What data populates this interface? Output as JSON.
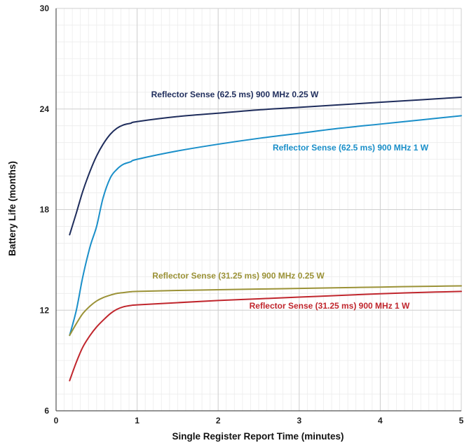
{
  "chart_data": {
    "type": "line",
    "xlabel": "Single Register Report Time (minutes)",
    "ylabel": "Battery Life (months)",
    "xlim": [
      0,
      5
    ],
    "ylim": [
      6,
      30
    ],
    "xticks": [
      0,
      1,
      2,
      3,
      4,
      5
    ],
    "yticks": [
      6,
      12,
      18,
      24,
      30
    ],
    "grid": true,
    "series": [
      {
        "name": "Reflector Sense (62.5 ms) 900 MHz 0.25 W",
        "color": "#1f2d5c",
        "x": [
          0.167,
          0.25,
          0.33,
          0.42,
          0.5,
          0.58,
          0.67,
          0.75,
          0.83,
          0.92,
          1.0,
          1.5,
          2.0,
          2.5,
          3.0,
          3.5,
          4.0,
          4.5,
          5.0
        ],
        "y": [
          16.5,
          17.8,
          19.1,
          20.3,
          21.2,
          21.9,
          22.5,
          22.85,
          23.05,
          23.15,
          23.25,
          23.55,
          23.75,
          23.95,
          24.1,
          24.25,
          24.4,
          24.55,
          24.7
        ]
      },
      {
        "name": "Reflector Sense (62.5 ms) 900 MHz 1 W",
        "color": "#1a8fc9",
        "x": [
          0.167,
          0.25,
          0.33,
          0.42,
          0.5,
          0.58,
          0.67,
          0.75,
          0.83,
          0.92,
          1.0,
          1.5,
          2.0,
          2.5,
          3.0,
          3.5,
          4.0,
          4.5,
          5.0
        ],
        "y": [
          10.5,
          12.0,
          14.0,
          15.8,
          17.0,
          18.7,
          19.9,
          20.4,
          20.7,
          20.85,
          21.0,
          21.5,
          21.9,
          22.25,
          22.55,
          22.85,
          23.1,
          23.35,
          23.6
        ]
      },
      {
        "name": "Reflector Sense (31.25 ms) 900 MHz 0.25 W",
        "color": "#9b9237",
        "x": [
          0.167,
          0.25,
          0.33,
          0.42,
          0.5,
          0.58,
          0.67,
          0.75,
          0.83,
          0.92,
          1.0,
          1.5,
          2.0,
          2.5,
          3.0,
          3.5,
          4.0,
          4.5,
          5.0
        ],
        "y": [
          10.5,
          11.2,
          11.8,
          12.25,
          12.55,
          12.75,
          12.9,
          13.0,
          13.05,
          13.1,
          13.12,
          13.18,
          13.22,
          13.26,
          13.3,
          13.34,
          13.38,
          13.42,
          13.45
        ]
      },
      {
        "name": "Reflector Sense (31.25 ms) 900 MHz 1 W",
        "color": "#c0262d",
        "x": [
          0.167,
          0.25,
          0.33,
          0.42,
          0.5,
          0.58,
          0.67,
          0.75,
          0.83,
          0.92,
          1.0,
          1.5,
          2.0,
          2.5,
          3.0,
          3.5,
          4.0,
          4.5,
          5.0
        ],
        "y": [
          7.8,
          8.9,
          9.8,
          10.5,
          11.0,
          11.4,
          11.8,
          12.05,
          12.2,
          12.28,
          12.32,
          12.45,
          12.58,
          12.68,
          12.78,
          12.88,
          12.98,
          13.06,
          13.12
        ]
      }
    ]
  }
}
